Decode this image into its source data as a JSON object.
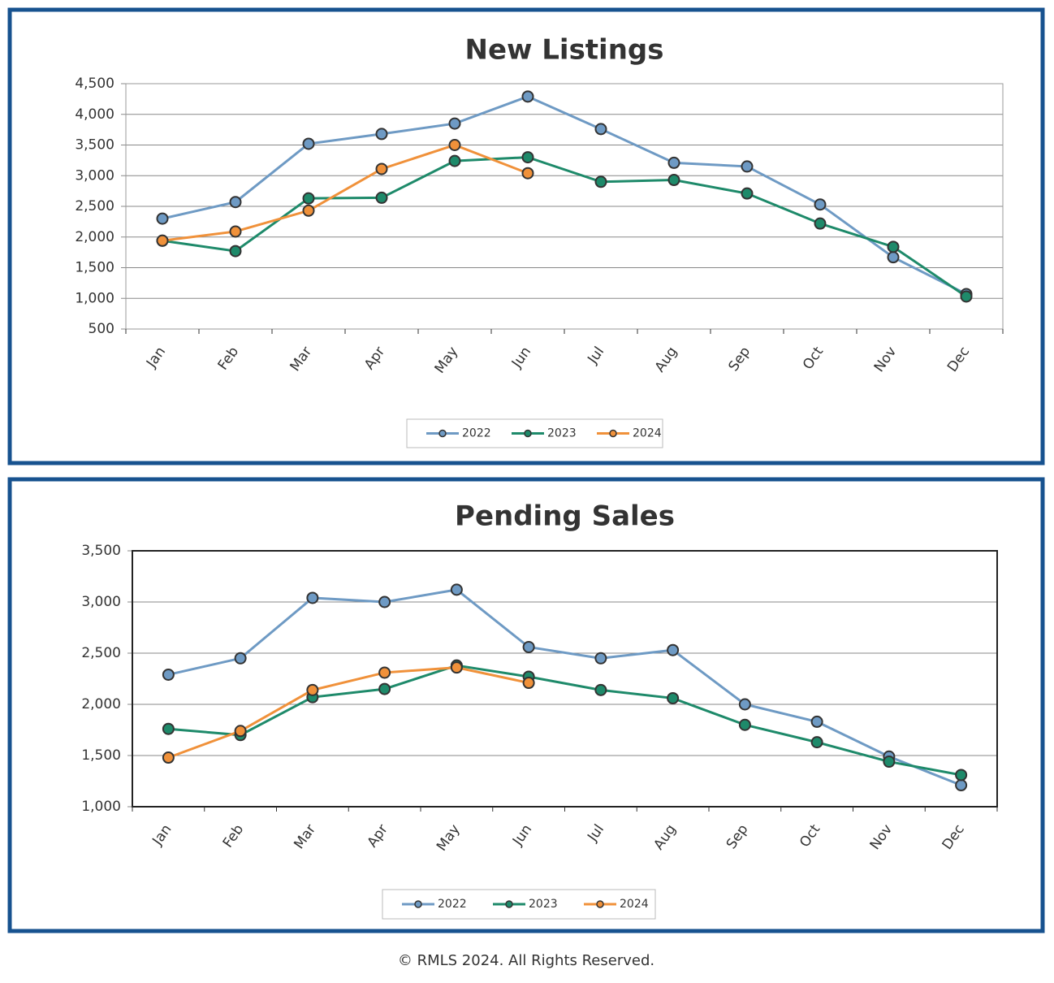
{
  "chart_data": [
    {
      "type": "line",
      "title": "New Listings",
      "categories": [
        "Jan",
        "Feb",
        "Mar",
        "Apr",
        "May",
        "Jun",
        "Jul",
        "Aug",
        "Sep",
        "Oct",
        "Nov",
        "Dec"
      ],
      "series": [
        {
          "name": "2022",
          "color": "#6e9ac4",
          "values": [
            2300,
            2570,
            3520,
            3680,
            3850,
            4290,
            3760,
            3210,
            3150,
            2530,
            1670,
            1070
          ]
        },
        {
          "name": "2023",
          "color": "#1e8a6a",
          "values": [
            1940,
            1770,
            2630,
            2640,
            3240,
            3300,
            2900,
            2930,
            2710,
            2220,
            1840,
            1030
          ]
        },
        {
          "name": "2024",
          "color": "#f0913a",
          "values": [
            1940,
            2090,
            2430,
            3110,
            3500,
            3040,
            null,
            null,
            null,
            null,
            null,
            null
          ]
        }
      ],
      "ylim": [
        500,
        4500
      ],
      "yticks": [
        500,
        {
          "value": 1000,
          "label": "1,000"
        },
        {
          "value": 1500,
          "label": "1,500"
        },
        {
          "value": 2000,
          "label": "2,000"
        },
        {
          "value": 2500,
          "label": "2,500"
        },
        {
          "value": 3000,
          "label": "3,000"
        },
        {
          "value": 3500,
          "label": "3,500"
        },
        {
          "value": 4000,
          "label": "4,000"
        },
        {
          "value": 4500,
          "label": "4,500"
        }
      ],
      "grid": true,
      "legend": "bottom"
    },
    {
      "type": "line",
      "title": "Pending Sales",
      "categories": [
        "Jan",
        "Feb",
        "Mar",
        "Apr",
        "May",
        "Jun",
        "Jul",
        "Aug",
        "Sep",
        "Oct",
        "Nov",
        "Dec"
      ],
      "series": [
        {
          "name": "2022",
          "color": "#6e9ac4",
          "values": [
            2290,
            2450,
            3040,
            3000,
            3120,
            2560,
            2450,
            2530,
            2000,
            1830,
            1490,
            1210
          ]
        },
        {
          "name": "2023",
          "color": "#1e8a6a",
          "values": [
            1760,
            1700,
            2070,
            2150,
            2380,
            2270,
            2140,
            2060,
            1800,
            1630,
            1440,
            1310
          ]
        },
        {
          "name": "2024",
          "color": "#f0913a",
          "values": [
            1480,
            1740,
            2140,
            2310,
            2360,
            2210,
            null,
            null,
            null,
            null,
            null,
            null
          ]
        }
      ],
      "ylim": [
        1000,
        3500
      ],
      "yticks": [
        {
          "value": 1000,
          "label": "1,000"
        },
        {
          "value": 1500,
          "label": "1,500"
        },
        {
          "value": 2000,
          "label": "2,000"
        },
        {
          "value": 2500,
          "label": "2,500"
        },
        {
          "value": 3000,
          "label": "3,000"
        },
        {
          "value": 3500,
          "label": "3,500"
        }
      ],
      "grid": true,
      "legend": "bottom"
    }
  ],
  "footer": "© RMLS 2024. All Rights Reserved."
}
